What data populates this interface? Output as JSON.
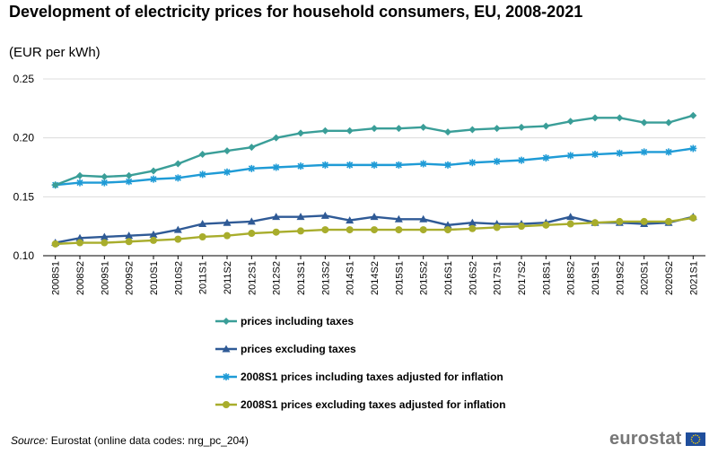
{
  "header": {
    "title": "Development of electricity prices for household consumers, EU, 2008-2021",
    "subtitle": "(EUR per kWh)"
  },
  "footer": {
    "source_label": "Source:",
    "source_text": "Eurostat (online data codes: nrg_pc_204)",
    "brand": "eurostat",
    "flag_icon": "eu-flag-icon"
  },
  "chart_data": {
    "type": "line",
    "categories": [
      "2008S1",
      "2008S2",
      "2009S1",
      "2009S2",
      "2010S1",
      "2010S2",
      "2011S1",
      "2011S2",
      "2012S1",
      "2012S2",
      "2013S1",
      "2013S2",
      "2014S1",
      "2014S2",
      "2015S1",
      "2015S2",
      "2016S1",
      "2016S2",
      "2017S1",
      "2017S2",
      "2018S1",
      "2018S2",
      "2019S1",
      "2019S2",
      "2020S1",
      "2020S2",
      "2021S1"
    ],
    "ylim": [
      0.1,
      0.25
    ],
    "yticks": [
      "0.10",
      "0.15",
      "0.20",
      "0.25"
    ],
    "grid": true,
    "legend_position": "bottom",
    "series": [
      {
        "name": "prices including taxes",
        "color": "#3a9e98",
        "marker": "diamond",
        "values": [
          0.16,
          0.168,
          0.167,
          0.168,
          0.172,
          0.178,
          0.186,
          0.189,
          0.192,
          0.2,
          0.204,
          0.206,
          0.206,
          0.208,
          0.208,
          0.209,
          0.205,
          0.207,
          0.208,
          0.209,
          0.21,
          0.214,
          0.217,
          0.217,
          0.213,
          0.213,
          0.219
        ]
      },
      {
        "name": "prices excluding taxes",
        "color": "#2f5a96",
        "marker": "triangle",
        "values": [
          0.111,
          0.115,
          0.116,
          0.117,
          0.118,
          0.122,
          0.127,
          0.128,
          0.129,
          0.133,
          0.133,
          0.134,
          0.13,
          0.133,
          0.131,
          0.131,
          0.126,
          0.128,
          0.127,
          0.127,
          0.128,
          0.133,
          0.128,
          0.128,
          0.127,
          0.128,
          0.133
        ]
      },
      {
        "name": "2008S1 prices including taxes adjusted for inflation",
        "color": "#1f9bd6",
        "marker": "star",
        "values": [
          0.16,
          0.162,
          0.162,
          0.163,
          0.165,
          0.166,
          0.169,
          0.171,
          0.174,
          0.175,
          0.176,
          0.177,
          0.177,
          0.177,
          0.177,
          0.178,
          0.177,
          0.179,
          0.18,
          0.181,
          0.183,
          0.185,
          0.186,
          0.187,
          0.188,
          0.188,
          0.191
        ]
      },
      {
        "name": "2008S1 prices excluding taxes adjusted for inflation",
        "color": "#a8ad2c",
        "marker": "circle",
        "values": [
          0.11,
          0.111,
          0.111,
          0.112,
          0.113,
          0.114,
          0.116,
          0.117,
          0.119,
          0.12,
          0.121,
          0.122,
          0.122,
          0.122,
          0.122,
          0.122,
          0.122,
          0.123,
          0.124,
          0.125,
          0.126,
          0.127,
          0.128,
          0.129,
          0.129,
          0.129,
          0.132
        ]
      }
    ]
  }
}
